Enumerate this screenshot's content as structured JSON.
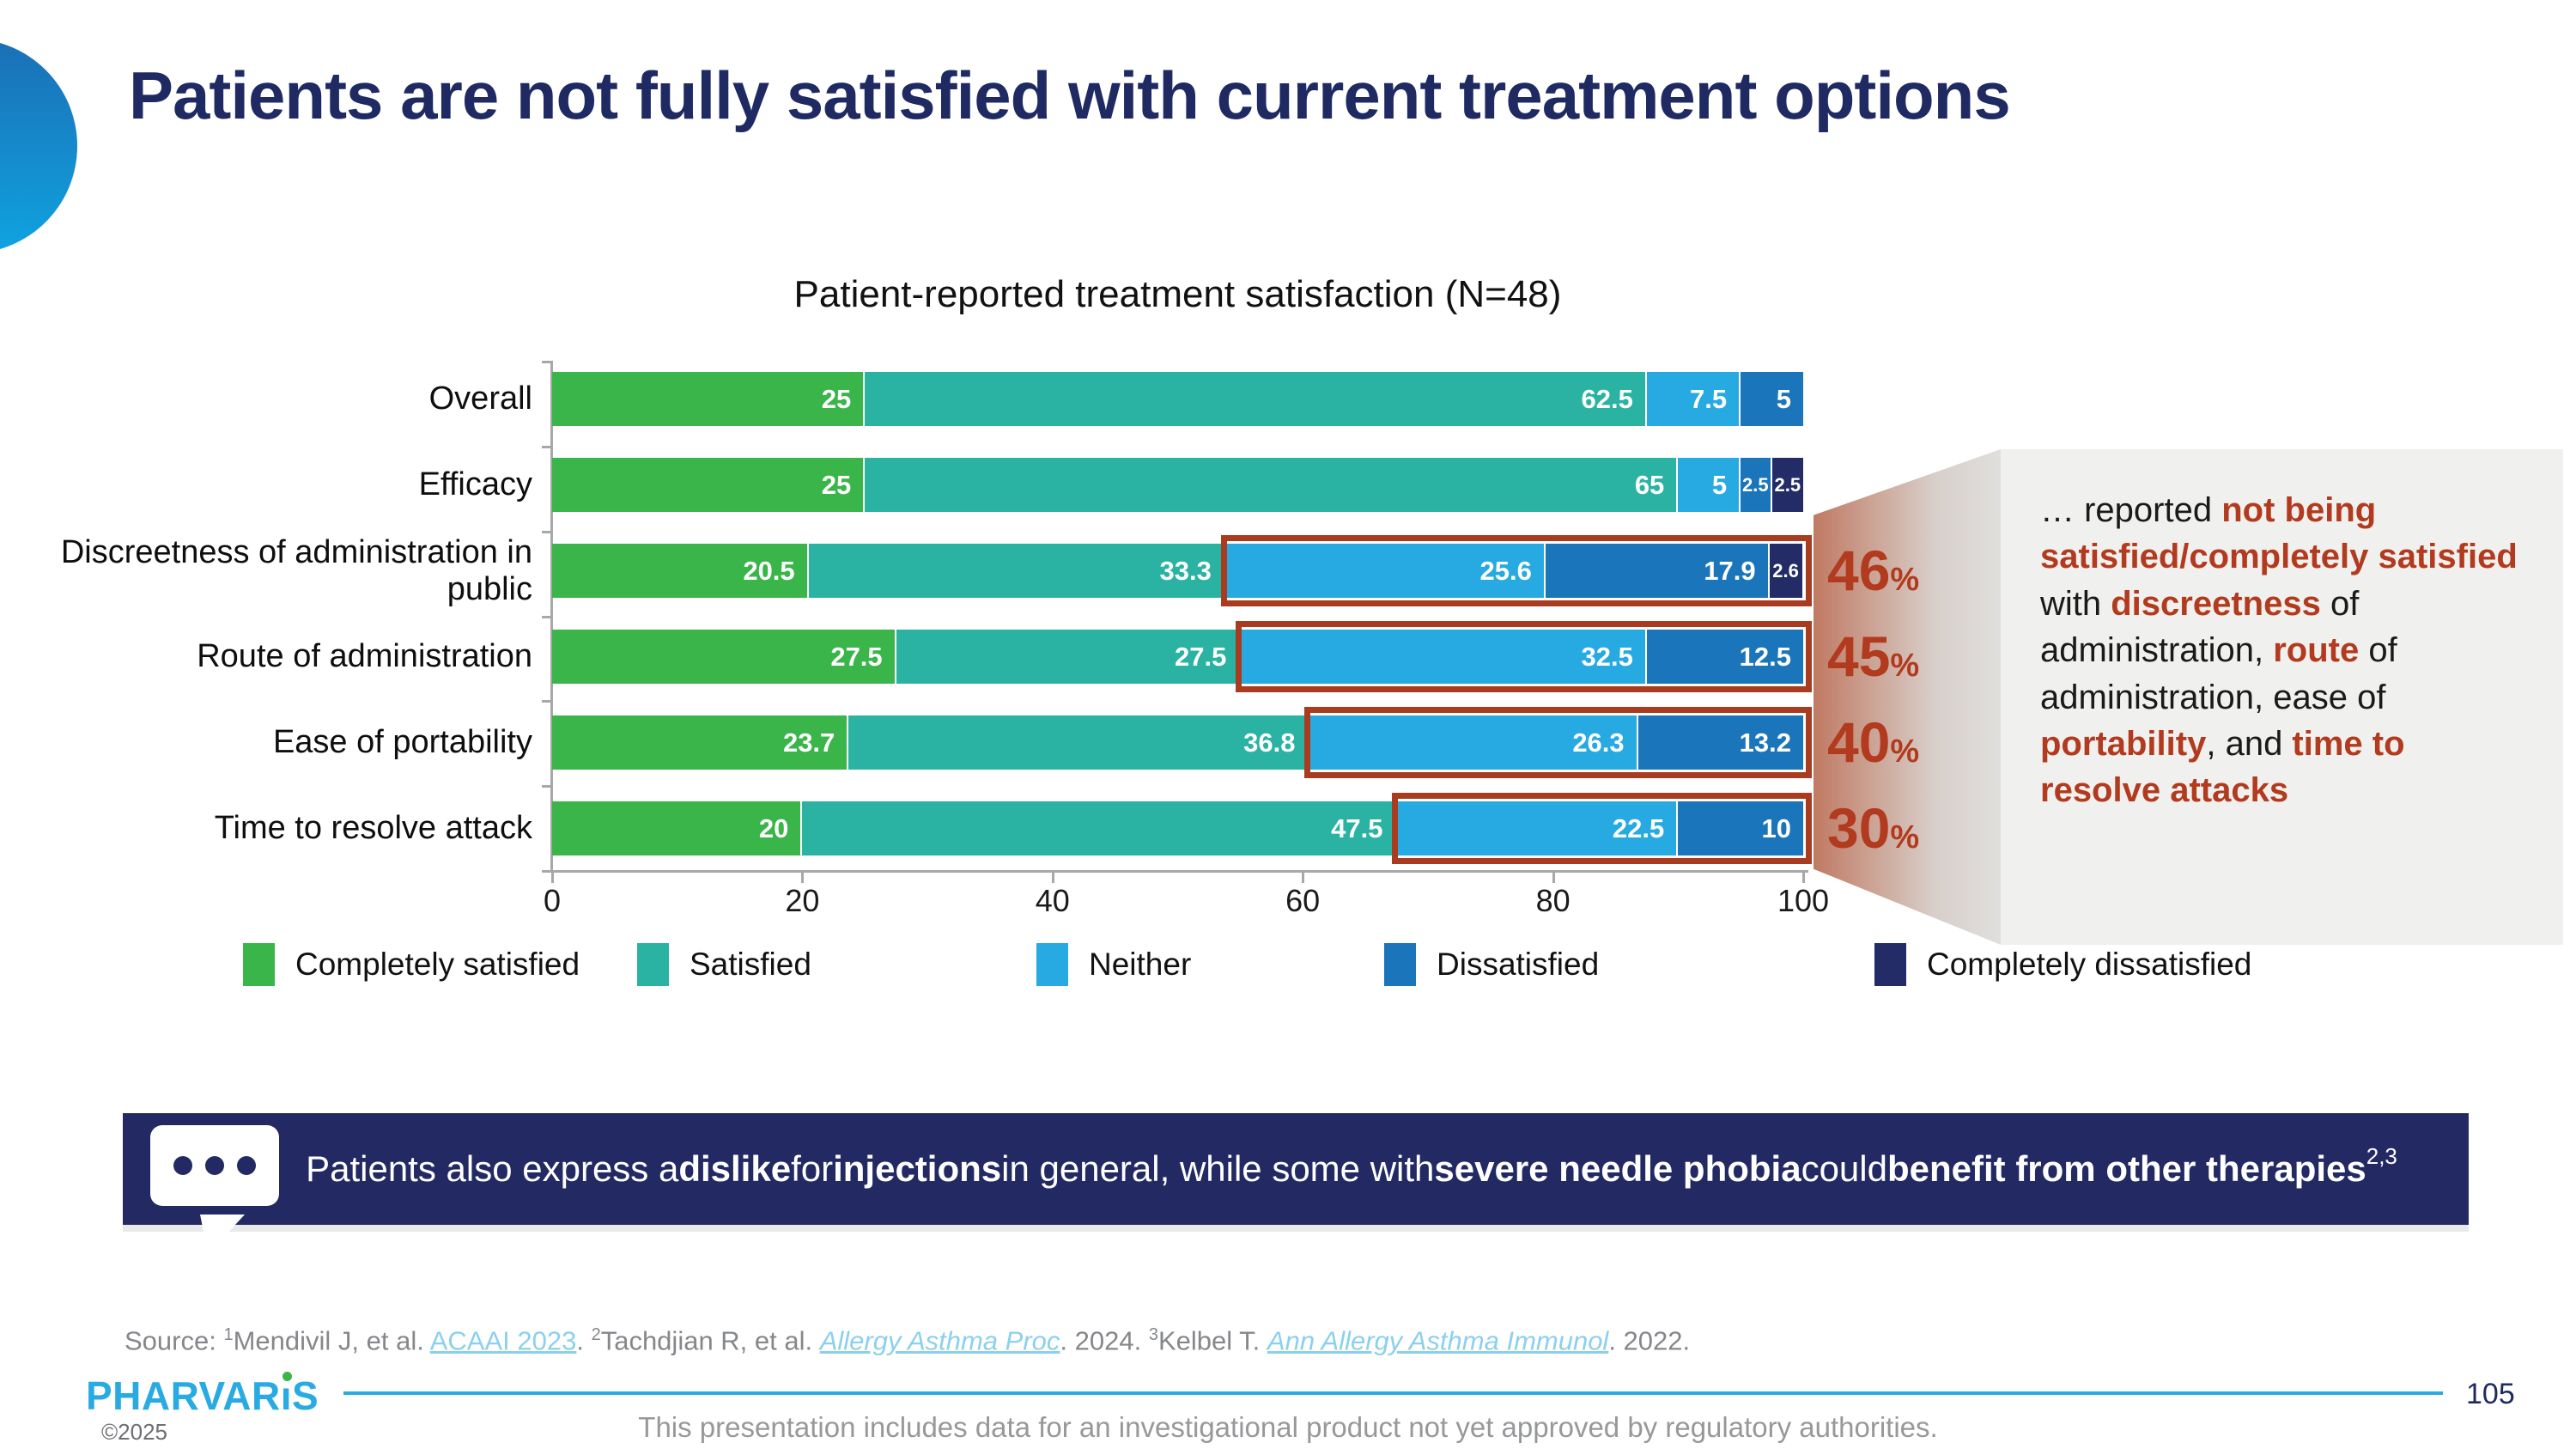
{
  "slide": {
    "title": "Patients are not fully satisfied with current treatment options"
  },
  "chart_data": {
    "type": "bar",
    "orientation": "horizontal-stacked",
    "title": "Patient-reported treatment satisfaction (N=48)",
    "xlim": [
      0,
      100
    ],
    "xticks": [
      "0",
      "20",
      "40",
      "60",
      "80",
      "100"
    ],
    "legend_position": "bottom",
    "grid": false,
    "legend": [
      {
        "label": "Completely satisfied",
        "color": "#3AB54A"
      },
      {
        "label": "Satisfied",
        "color": "#2AB3A3"
      },
      {
        "label": "Neither",
        "color": "#27AAE1"
      },
      {
        "label": "Dissatisfied",
        "color": "#1B75BB"
      },
      {
        "label": "Completely dissatisfied",
        "color": "#232C66"
      }
    ],
    "rows": [
      {
        "category": "Overall",
        "segments": [
          {
            "value": 25,
            "label": "25"
          },
          {
            "value": 62.5,
            "label": "62.5"
          },
          {
            "value": 7.5,
            "label": "7.5"
          },
          {
            "value": 5,
            "label": "5"
          }
        ],
        "highlight": null
      },
      {
        "category": "Efficacy",
        "segments": [
          {
            "value": 25,
            "label": "25"
          },
          {
            "value": 65,
            "label": "65"
          },
          {
            "value": 5,
            "label": "5"
          },
          {
            "value": 2.5,
            "label": "2.5"
          },
          {
            "value": 2.5,
            "label": "2.5"
          }
        ],
        "highlight": null
      },
      {
        "category": "Discreetness of administration in public",
        "segments": [
          {
            "value": 20.5,
            "label": "20.5"
          },
          {
            "value": 33.3,
            "label": "33.3"
          },
          {
            "value": 25.6,
            "label": "25.6"
          },
          {
            "value": 17.9,
            "label": "17.9"
          },
          {
            "value": 2.6,
            "label": "2.6"
          }
        ],
        "highlight": {
          "start": 53.8,
          "percent": "46",
          "suffix": "%"
        }
      },
      {
        "category": "Route of administration",
        "segments": [
          {
            "value": 27.5,
            "label": "27.5"
          },
          {
            "value": 27.5,
            "label": "27.5"
          },
          {
            "value": 32.5,
            "label": "32.5"
          },
          {
            "value": 12.5,
            "label": "12.5"
          }
        ],
        "highlight": {
          "start": 55,
          "percent": "45",
          "suffix": "%"
        }
      },
      {
        "category": "Ease of portability",
        "segments": [
          {
            "value": 23.7,
            "label": "23.7"
          },
          {
            "value": 36.8,
            "label": "36.8"
          },
          {
            "value": 26.3,
            "label": "26.3"
          },
          {
            "value": 13.2,
            "label": "13.2"
          }
        ],
        "highlight": {
          "start": 60.5,
          "percent": "40",
          "suffix": "%"
        }
      },
      {
        "category": "Time to resolve attack",
        "segments": [
          {
            "value": 20,
            "label": "20"
          },
          {
            "value": 47.5,
            "label": "47.5"
          },
          {
            "value": 22.5,
            "label": "22.5"
          },
          {
            "value": 10,
            "label": "10"
          }
        ],
        "highlight": {
          "start": 67.5,
          "percent": "30",
          "suffix": "%"
        }
      }
    ]
  },
  "side_note": {
    "segments": [
      {
        "text": "… reported ",
        "red": false
      },
      {
        "text": "not being satisfied/completely satisfied",
        "red": true
      },
      {
        "text": " with ",
        "red": false
      },
      {
        "text": "discreetness",
        "red": true
      },
      {
        "text": " of administration, ",
        "red": false
      },
      {
        "text": "route",
        "red": true
      },
      {
        "text": " of administration, ease of ",
        "red": false
      },
      {
        "text": "portability",
        "red": true
      },
      {
        "text": ", and ",
        "red": false
      },
      {
        "text": "time to resolve attacks",
        "red": true
      }
    ]
  },
  "banner": {
    "segments": [
      {
        "text": "Patients also express a ",
        "bold": false
      },
      {
        "text": "dislike",
        "bold": true
      },
      {
        "text": " for ",
        "bold": false
      },
      {
        "text": "injections",
        "bold": true
      },
      {
        "text": " in general, while some with ",
        "bold": false
      },
      {
        "text": "severe needle phobia",
        "bold": true
      },
      {
        "text": " could ",
        "bold": false
      },
      {
        "text": "benefit from other therapies",
        "bold": true
      }
    ],
    "superscript": "2,3"
  },
  "source": {
    "parts": [
      {
        "text": "Source: "
      },
      {
        "text": "1",
        "sup": true
      },
      {
        "text": "Mendivil J, et al. "
      },
      {
        "text": "ACAAI 2023",
        "link": true
      },
      {
        "text": ". "
      },
      {
        "text": "2",
        "sup": true
      },
      {
        "text": "Tachdjian R, et al. "
      },
      {
        "text": "Allergy Asthma Proc",
        "link": true,
        "italic": true
      },
      {
        "text": ". 2024. "
      },
      {
        "text": "3",
        "sup": true
      },
      {
        "text": "Kelbel T. "
      },
      {
        "text": "Ann Allergy Asthma Immunol",
        "link": true,
        "italic": true
      },
      {
        "text": ". 2022."
      }
    ]
  },
  "footer": {
    "logo": "PHARVARIS",
    "copyright": "©2025",
    "page": "105",
    "disclaimer": "This presentation includes data for an investigational product not yet approved by regulatory authorities."
  },
  "colors": {
    "title_navy": "#1F2A63",
    "highlight_red": "#B23A1E",
    "outline_red": "#A93B21",
    "banner_navy": "#232A63",
    "accent_blue": "#29ABE2",
    "logo_green": "#3AB54A",
    "side_box_bg": "#F0F0EE"
  }
}
